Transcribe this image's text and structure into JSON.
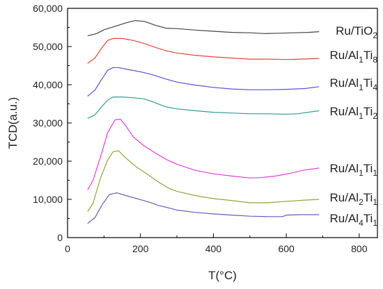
{
  "chart_data": {
    "type": "line",
    "xlabel": "T(°C)",
    "ylabel": "TCD(a.u.)",
    "xlim": [
      0,
      850
    ],
    "ylim": [
      0,
      60000
    ],
    "xticks": [
      0,
      200,
      400,
      600,
      800
    ],
    "xtick_labels": [
      "0",
      "200",
      "400",
      "600",
      "800"
    ],
    "yticks": [
      0,
      10000,
      20000,
      30000,
      40000,
      50000,
      60000
    ],
    "ytick_labels": [
      "0",
      "10,000",
      "20,000",
      "30,000",
      "40,000",
      "50,000",
      "60,000"
    ],
    "grid": false,
    "series": [
      {
        "name": "Ru/TiO2",
        "label_parts": [
          [
            "Ru/TiO",
            ""
          ],
          [
            "2",
            "sub"
          ]
        ],
        "color": "#444444",
        "x": [
          55,
          80,
          100,
          130,
          160,
          185,
          210,
          240,
          270,
          300,
          350,
          400,
          450,
          500,
          540,
          580,
          620,
          660,
          690
        ],
        "y": [
          52800,
          53400,
          54400,
          55300,
          56200,
          56800,
          56600,
          55600,
          54800,
          54700,
          54300,
          54000,
          53700,
          53600,
          53400,
          53500,
          53600,
          53700,
          53900
        ]
      },
      {
        "name": "Ru/Al1Ti8",
        "label_parts": [
          [
            "Ru/Al",
            ""
          ],
          [
            "1",
            "sub"
          ],
          [
            "Ti",
            ""
          ],
          [
            "8",
            "sub"
          ]
        ],
        "color": "#e8433a",
        "x": [
          55,
          75,
          95,
          110,
          125,
          150,
          180,
          210,
          240,
          270,
          300,
          350,
          400,
          450,
          500,
          550,
          600,
          640,
          690
        ],
        "y": [
          45600,
          47000,
          49800,
          51600,
          52100,
          52100,
          51600,
          50800,
          49800,
          48900,
          48300,
          47700,
          47300,
          47000,
          46700,
          46700,
          46600,
          46700,
          46900
        ]
      },
      {
        "name": "Ru/Al1Ti4",
        "label_parts": [
          [
            "Ru/Al",
            ""
          ],
          [
            "1",
            "sub"
          ],
          [
            "Ti",
            ""
          ],
          [
            "4",
            "sub"
          ]
        ],
        "color": "#5a4fd6",
        "x": [
          55,
          75,
          95,
          110,
          125,
          140,
          170,
          200,
          230,
          270,
          300,
          350,
          400,
          450,
          500,
          550,
          600,
          650,
          690
        ],
        "y": [
          37000,
          38600,
          41600,
          43800,
          44500,
          44500,
          43900,
          43400,
          42700,
          41500,
          40700,
          39900,
          39300,
          38900,
          38700,
          38700,
          38800,
          39000,
          39500
        ]
      },
      {
        "name": "Ru/Al1Ti2",
        "label_parts": [
          [
            "Ru/Al",
            ""
          ],
          [
            "1",
            "sub"
          ],
          [
            "Ti",
            ""
          ],
          [
            "2",
            "sub"
          ]
        ],
        "color": "#2f9e92",
        "x": [
          55,
          75,
          95,
          110,
          125,
          150,
          180,
          210,
          240,
          270,
          300,
          350,
          400,
          450,
          500,
          550,
          600,
          630,
          660,
          690
        ],
        "y": [
          31200,
          32100,
          34400,
          36000,
          36800,
          36800,
          36600,
          36300,
          35300,
          34200,
          33700,
          33200,
          32800,
          32600,
          32400,
          32400,
          32300,
          32400,
          32800,
          33200
        ]
      },
      {
        "name": "Ru/Al1Ti1",
        "label_parts": [
          [
            "Ru/Al",
            ""
          ],
          [
            "1",
            "sub"
          ],
          [
            "Ti",
            ""
          ],
          [
            "1",
            "sub"
          ]
        ],
        "color": "#e23ed8",
        "x": [
          55,
          70,
          90,
          110,
          130,
          145,
          160,
          180,
          210,
          240,
          270,
          300,
          350,
          400,
          450,
          500,
          530,
          570,
          610,
          650,
          690
        ],
        "y": [
          12500,
          15000,
          21000,
          27500,
          30800,
          31000,
          29200,
          26400,
          24000,
          22200,
          20500,
          19200,
          17600,
          16700,
          16100,
          15600,
          15700,
          16100,
          16800,
          17700,
          18200
        ]
      },
      {
        "name": "Ru/Al2Ti1",
        "label_parts": [
          [
            "Ru/Al",
            ""
          ],
          [
            "2",
            "sub"
          ],
          [
            "Ti",
            ""
          ],
          [
            "1",
            "sub"
          ]
        ],
        "color": "#98a03a",
        "x": [
          55,
          70,
          90,
          110,
          125,
          140,
          160,
          190,
          220,
          250,
          280,
          300,
          350,
          400,
          450,
          500,
          550,
          600,
          650,
          690
        ],
        "y": [
          6800,
          9000,
          15500,
          20300,
          22500,
          22700,
          20800,
          18400,
          16500,
          14500,
          12800,
          12100,
          11000,
          10200,
          9700,
          9100,
          9100,
          9500,
          9800,
          10000
        ]
      },
      {
        "name": "Ru/Al4Ti1",
        "label_parts": [
          [
            "Ru/Al",
            ""
          ],
          [
            "4",
            "sub"
          ],
          [
            "Ti",
            ""
          ],
          [
            "1",
            "sub"
          ]
        ],
        "color": "#6a5ab8",
        "x": [
          55,
          75,
          95,
          115,
          135,
          160,
          190,
          220,
          250,
          280,
          300,
          350,
          400,
          450,
          500,
          550,
          590,
          600,
          640,
          690
        ],
        "y": [
          3700,
          5200,
          8600,
          11300,
          11700,
          11000,
          10200,
          9400,
          8400,
          7700,
          7200,
          6600,
          6200,
          5900,
          5600,
          5500,
          5500,
          5900,
          6000,
          6000
        ]
      }
    ]
  }
}
